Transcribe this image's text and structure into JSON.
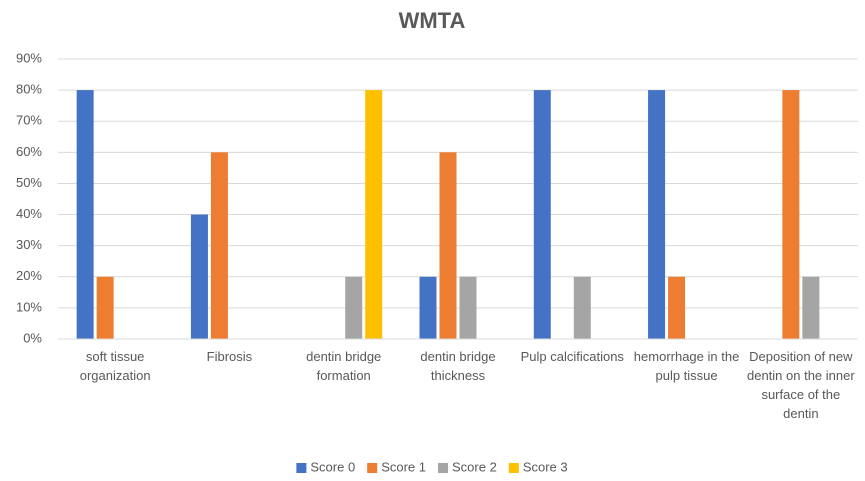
{
  "chart_data": {
    "type": "bar",
    "title": "WMTA",
    "categories": [
      "soft tissue organization",
      "Fibrosis",
      "dentin bridge formation",
      "dentin bridge thickness",
      "Pulp calcifications",
      "hemorrhage in the pulp tissue",
      "Deposition of new dentin on the inner surface of the dentin"
    ],
    "series": [
      {
        "name": "Score 0",
        "color": "#4472c4",
        "values": [
          80,
          40,
          0,
          20,
          80,
          80,
          0
        ]
      },
      {
        "name": "Score 1",
        "color": "#ed7d31",
        "values": [
          20,
          60,
          0,
          60,
          0,
          20,
          80
        ]
      },
      {
        "name": "Score 2",
        "color": "#a5a5a5",
        "values": [
          0,
          0,
          20,
          20,
          20,
          0,
          20
        ]
      },
      {
        "name": "Score 3",
        "color": "#ffc000",
        "values": [
          0,
          0,
          80,
          0,
          0,
          0,
          0
        ]
      }
    ],
    "ylim": [
      0,
      90
    ],
    "yticks": [
      {
        "value": 0,
        "label": "0%"
      },
      {
        "value": 10,
        "label": "10%"
      },
      {
        "value": 20,
        "label": "20%"
      },
      {
        "value": 30,
        "label": "30%"
      },
      {
        "value": 40,
        "label": "40%"
      },
      {
        "value": 50,
        "label": "50%"
      },
      {
        "value": 60,
        "label": "60%"
      },
      {
        "value": 70,
        "label": "70%"
      },
      {
        "value": 80,
        "label": "80%"
      },
      {
        "value": 90,
        "label": "90%"
      }
    ],
    "grid": true,
    "legend": "bottom"
  }
}
